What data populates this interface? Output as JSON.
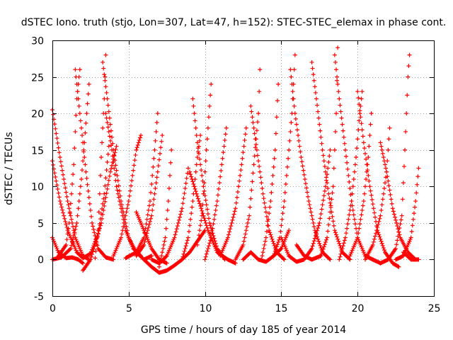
{
  "chart_data": {
    "type": "scatter",
    "title": "dSTEC Iono. truth (stjo, Lon=307, Lat=47, h=152): STEC-STEC_elemax in phase cont.",
    "xlabel": "GPS time / hours of day 185 of year 2014",
    "ylabel": "dSTEC  / TECUs",
    "xlim": [
      0,
      25
    ],
    "ylim": [
      -5,
      30
    ],
    "x_ticks": [
      0,
      5,
      10,
      15,
      20,
      25
    ],
    "y_ticks": [
      -5,
      0,
      5,
      10,
      15,
      20,
      25,
      30
    ],
    "x_tick_labels": [
      "0",
      "5",
      "10",
      "15",
      "20",
      "25"
    ],
    "y_tick_labels": [
      "-5",
      "0",
      "5",
      "10",
      "15",
      "20",
      "25",
      "30"
    ],
    "grid": true,
    "legend": "none",
    "marker": "plus",
    "color": "#ff0000",
    "point_spacing_hours": 0.05,
    "series": [
      {
        "points": [
          [
            0.0,
            13.5
          ],
          [
            0.5,
            8
          ],
          [
            1.0,
            4
          ],
          [
            1.6,
            1
          ],
          [
            2.0,
            0.2
          ],
          [
            2.5,
            0.8
          ],
          [
            3.0,
            3.5
          ],
          [
            3.4,
            9
          ],
          [
            3.7,
            15.5
          ]
        ]
      },
      {
        "points": [
          [
            0.0,
            20.5
          ],
          [
            0.5,
            14
          ],
          [
            1.0,
            8
          ],
          [
            1.5,
            3
          ],
          [
            2.0,
            0.5
          ],
          [
            2.4,
            0
          ]
        ]
      },
      {
        "points": [
          [
            0.0,
            3
          ],
          [
            0.4,
            1
          ],
          [
            0.9,
            0.2
          ],
          [
            1.3,
            0.3
          ],
          [
            1.7,
            0
          ],
          [
            2.0,
            -0.5
          ]
        ]
      },
      {
        "points": [
          [
            0.0,
            0
          ],
          [
            0.6,
            0.3
          ],
          [
            1.2,
            1.5
          ],
          [
            1.6,
            5
          ],
          [
            1.9,
            11
          ],
          [
            2.1,
            16
          ],
          [
            2.4,
            24
          ]
        ]
      },
      {
        "points": [
          [
            0.3,
            0.2
          ],
          [
            0.9,
            2
          ],
          [
            1.1,
            5
          ],
          [
            1.4,
            13
          ],
          [
            1.6,
            22
          ],
          [
            1.8,
            26
          ]
        ]
      },
      {
        "points": [
          [
            1.5,
            26
          ],
          [
            1.8,
            20
          ],
          [
            2.2,
            12
          ],
          [
            2.6,
            5
          ],
          [
            3.0,
            1.5
          ],
          [
            3.5,
            0.3
          ],
          [
            4.0,
            0
          ]
        ]
      },
      {
        "points": [
          [
            2.8,
            0.2
          ],
          [
            3.0,
            4
          ],
          [
            3.2,
            14
          ],
          [
            3.4,
            22
          ],
          [
            3.5,
            28
          ]
        ]
      },
      {
        "points": [
          [
            3.3,
            27
          ],
          [
            3.6,
            22
          ],
          [
            4.0,
            15
          ],
          [
            4.5,
            8
          ],
          [
            5.0,
            3
          ],
          [
            5.5,
            1
          ],
          [
            6.0,
            0
          ],
          [
            6.5,
            0.5
          ]
        ]
      },
      {
        "points": [
          [
            3.5,
            20
          ],
          [
            3.9,
            15
          ],
          [
            4.2,
            10
          ],
          [
            4.8,
            4
          ],
          [
            5.3,
            1.5
          ],
          [
            5.8,
            0.5
          ]
        ]
      },
      {
        "points": [
          [
            2.0,
            -1.5
          ],
          [
            2.5,
            0
          ],
          [
            3.2,
            5
          ],
          [
            3.8,
            12
          ],
          [
            4.2,
            15.5
          ]
        ]
      },
      {
        "points": [
          [
            4.0,
            0.5
          ],
          [
            4.5,
            3
          ],
          [
            5.0,
            8
          ],
          [
            5.5,
            15
          ],
          [
            5.8,
            17
          ]
        ]
      },
      {
        "points": [
          [
            4.8,
            0.2
          ],
          [
            5.5,
            1
          ],
          [
            6.0,
            3
          ],
          [
            6.4,
            8
          ],
          [
            6.7,
            15
          ],
          [
            6.9,
            20
          ]
        ]
      },
      {
        "points": [
          [
            5.5,
            0.5
          ],
          [
            6.0,
            2
          ],
          [
            6.5,
            6
          ],
          [
            6.9,
            12
          ],
          [
            7.2,
            17
          ]
        ]
      },
      {
        "points": [
          [
            6.0,
            0
          ],
          [
            6.5,
            -1
          ],
          [
            7.0,
            -1.8
          ],
          [
            7.5,
            -1.5
          ],
          [
            8.0,
            -0.8
          ],
          [
            8.5,
            0
          ],
          [
            9.0,
            1
          ],
          [
            9.5,
            2.5
          ],
          [
            10.0,
            4
          ]
        ]
      },
      {
        "points": [
          [
            6.5,
            0
          ],
          [
            7.0,
            -0.5
          ],
          [
            7.5,
            0.5
          ],
          [
            8.0,
            3
          ],
          [
            8.5,
            7
          ],
          [
            8.9,
            12.5
          ]
        ]
      },
      {
        "points": [
          [
            7.0,
            -1
          ],
          [
            7.4,
            3
          ],
          [
            7.6,
            8
          ],
          [
            7.8,
            15
          ]
        ]
      },
      {
        "points": [
          [
            5.5,
            6.5
          ],
          [
            6.0,
            4
          ],
          [
            6.5,
            1.5
          ],
          [
            7.0,
            0
          ],
          [
            7.5,
            -0.5
          ]
        ]
      },
      {
        "points": [
          [
            8.5,
            0
          ],
          [
            8.9,
            3
          ],
          [
            9.2,
            8
          ],
          [
            9.5,
            14
          ],
          [
            9.7,
            17
          ]
        ]
      },
      {
        "points": [
          [
            9.0,
            12
          ],
          [
            9.6,
            8
          ],
          [
            10.2,
            4
          ],
          [
            10.8,
            1
          ],
          [
            11.5,
            0
          ],
          [
            12.0,
            -0.5
          ]
        ]
      },
      {
        "points": [
          [
            9.2,
            22
          ],
          [
            9.5,
            16
          ],
          [
            9.9,
            10
          ],
          [
            10.3,
            5
          ],
          [
            10.8,
            1.5
          ],
          [
            11.3,
            0
          ]
        ]
      },
      {
        "points": [
          [
            9.5,
            2
          ],
          [
            9.8,
            6
          ],
          [
            10.0,
            12
          ],
          [
            10.2,
            18
          ],
          [
            10.4,
            24
          ]
        ]
      },
      {
        "points": [
          [
            10.0,
            0
          ],
          [
            10.4,
            3
          ],
          [
            10.8,
            8
          ],
          [
            11.1,
            13
          ],
          [
            11.4,
            18
          ]
        ]
      },
      {
        "points": [
          [
            11.0,
            0.5
          ],
          [
            11.5,
            3
          ],
          [
            12.0,
            7
          ],
          [
            12.4,
            13
          ],
          [
            12.7,
            18
          ]
        ]
      },
      {
        "points": [
          [
            12.0,
            0
          ],
          [
            12.5,
            2
          ],
          [
            12.9,
            6
          ],
          [
            13.2,
            13
          ],
          [
            13.5,
            20
          ],
          [
            13.6,
            26
          ]
        ]
      },
      {
        "points": [
          [
            13.0,
            21
          ],
          [
            13.4,
            15
          ],
          [
            13.8,
            9
          ],
          [
            14.2,
            4
          ],
          [
            14.7,
            1
          ],
          [
            15.2,
            0
          ]
        ]
      },
      {
        "points": [
          [
            13.7,
            0
          ],
          [
            14.0,
            3
          ],
          [
            14.3,
            8
          ],
          [
            14.6,
            15
          ],
          [
            14.8,
            24
          ]
        ]
      },
      {
        "points": [
          [
            12.5,
            0
          ],
          [
            13.0,
            1
          ],
          [
            13.5,
            0
          ],
          [
            14.0,
            -0.3
          ],
          [
            14.5,
            0.5
          ],
          [
            15.0,
            1.5
          ],
          [
            15.5,
            4
          ]
        ]
      },
      {
        "points": [
          [
            14.5,
            0.5
          ],
          [
            14.9,
            3
          ],
          [
            15.2,
            8
          ],
          [
            15.5,
            15
          ],
          [
            15.7,
            20
          ],
          [
            15.9,
            28
          ]
        ]
      },
      {
        "points": [
          [
            15.6,
            26
          ],
          [
            15.9,
            20
          ],
          [
            16.3,
            14
          ],
          [
            16.8,
            8
          ],
          [
            17.2,
            4
          ],
          [
            17.7,
            1
          ],
          [
            18.2,
            0
          ]
        ]
      },
      {
        "points": [
          [
            15.0,
            3
          ],
          [
            15.5,
            0.5
          ],
          [
            16.0,
            -0.3
          ],
          [
            16.5,
            0
          ],
          [
            17.0,
            1.5
          ],
          [
            17.5,
            5
          ],
          [
            17.9,
            10
          ],
          [
            18.2,
            15
          ]
        ]
      },
      {
        "points": [
          [
            16.0,
            2
          ],
          [
            16.5,
            0.5
          ],
          [
            17.0,
            0
          ],
          [
            17.6,
            0.5
          ],
          [
            18.0,
            3
          ],
          [
            18.4,
            10
          ],
          [
            18.6,
            20
          ],
          [
            18.7,
            29
          ]
        ]
      },
      {
        "points": [
          [
            17.0,
            27
          ],
          [
            17.3,
            22
          ],
          [
            17.7,
            15
          ],
          [
            18.1,
            9
          ],
          [
            18.5,
            4
          ],
          [
            19.0,
            1
          ],
          [
            19.5,
            0
          ]
        ]
      },
      {
        "points": [
          [
            18.5,
            28
          ],
          [
            18.8,
            22
          ],
          [
            19.2,
            15
          ],
          [
            19.6,
            8
          ],
          [
            20.0,
            3
          ],
          [
            20.5,
            0.5
          ],
          [
            21.0,
            0
          ]
        ]
      },
      {
        "points": [
          [
            18.8,
            0
          ],
          [
            19.2,
            3
          ],
          [
            19.6,
            8
          ],
          [
            19.9,
            14
          ],
          [
            20.1,
            19
          ],
          [
            20.3,
            23
          ]
        ]
      },
      {
        "points": [
          [
            19.5,
            0.5
          ],
          [
            20.0,
            3
          ],
          [
            20.4,
            8
          ],
          [
            20.7,
            14
          ],
          [
            20.9,
            20
          ]
        ]
      },
      {
        "points": [
          [
            20.0,
            23
          ],
          [
            20.4,
            16
          ],
          [
            20.8,
            10
          ],
          [
            21.3,
            4
          ],
          [
            21.8,
            1
          ],
          [
            22.3,
            -0.5
          ],
          [
            22.7,
            -1
          ]
        ]
      },
      {
        "points": [
          [
            20.5,
            0
          ],
          [
            21.0,
            2
          ],
          [
            21.5,
            6
          ],
          [
            21.9,
            12
          ],
          [
            22.1,
            18
          ]
        ]
      },
      {
        "points": [
          [
            21.0,
            0
          ],
          [
            21.5,
            -0.5
          ],
          [
            22.0,
            0
          ],
          [
            22.5,
            1.5
          ],
          [
            22.9,
            6
          ],
          [
            23.1,
            15
          ],
          [
            23.3,
            25
          ],
          [
            23.4,
            28
          ]
        ]
      },
      {
        "points": [
          [
            22.5,
            0
          ],
          [
            23.0,
            0.5
          ],
          [
            23.5,
            3
          ],
          [
            23.8,
            8
          ],
          [
            24.0,
            12.5
          ]
        ]
      },
      {
        "points": [
          [
            23.0,
            1
          ],
          [
            23.5,
            0
          ],
          [
            24.0,
            0
          ]
        ]
      },
      {
        "points": [
          [
            21.5,
            16
          ],
          [
            21.9,
            12
          ],
          [
            22.3,
            7
          ],
          [
            22.8,
            3
          ],
          [
            23.3,
            1
          ],
          [
            23.8,
            0
          ]
        ]
      }
    ]
  }
}
